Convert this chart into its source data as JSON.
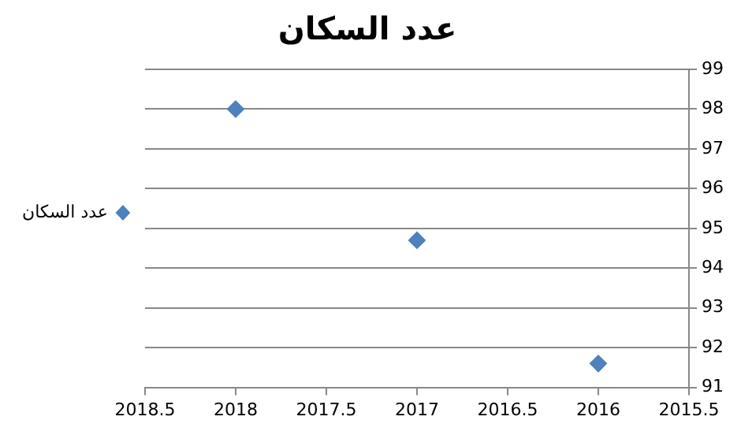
{
  "chart_data": {
    "type": "scatter",
    "title": "عدد السكان",
    "x": [
      2018,
      2017,
      2016
    ],
    "series": [
      {
        "name": "عدد السكان",
        "color": "#4f81bd",
        "values": [
          98,
          94.7,
          91.6
        ]
      }
    ],
    "xlim": [
      2018.5,
      2015.5
    ],
    "xticks": [
      2018.5,
      2018,
      2017.5,
      2017,
      2016.5,
      2016,
      2015.5
    ],
    "ylim": [
      91,
      99
    ],
    "yticks": [
      91,
      92,
      93,
      94,
      95,
      96,
      97,
      98,
      99
    ],
    "grid": "y",
    "legend": "left",
    "marker": "diamond"
  }
}
